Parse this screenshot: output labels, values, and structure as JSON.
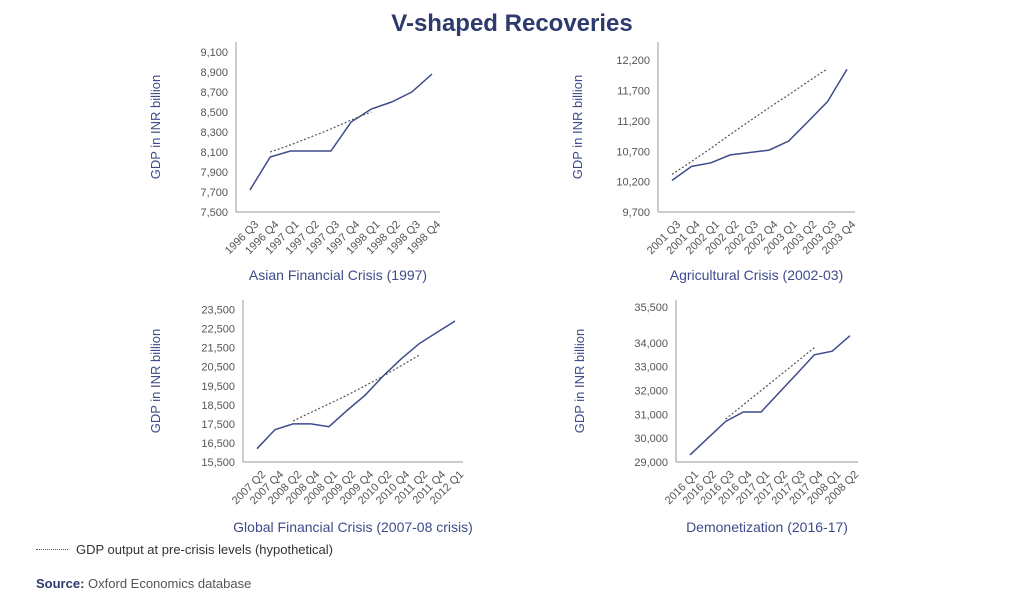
{
  "title": "V-shaped Recoveries",
  "legend": {
    "label": "GDP output at pre-crisis levels (hypothetical)"
  },
  "source": {
    "label": "Source:",
    "text": "Oxford Economics database"
  },
  "colors": {
    "line": "#3f4b8a",
    "title": "#2d3a6e",
    "dotted": "#555555",
    "axis": "#999999",
    "text": "#555555"
  },
  "chart_data": [
    {
      "type": "line",
      "title": "Asian Financial Crisis (1997)",
      "ylabel": "GDP in INR billion",
      "categories": [
        "1996 Q3",
        "1996 Q4",
        "1997 Q1",
        "1997 Q2",
        "1997 Q3",
        "1997 Q4",
        "1998 Q1",
        "1998 Q2",
        "1998 Q3",
        "1998 Q4"
      ],
      "series": [
        {
          "values": [
            7720,
            8050,
            8110,
            8110,
            8110,
            8400,
            8530,
            8600,
            8700,
            8880
          ]
        },
        {
          "style": "dotted",
          "values": [
            null,
            8100,
            8170,
            8250,
            8330,
            8420,
            8500,
            null,
            null,
            null
          ]
        }
      ],
      "yticks": [
        7500,
        7700,
        7900,
        8100,
        8300,
        8500,
        8700,
        8900,
        9100
      ],
      "ylim": [
        7500,
        9200
      ]
    },
    {
      "type": "line",
      "title": "Agricultural Crisis (2002-03)",
      "ylabel": "GDP in INR billion",
      "categories": [
        "2001 Q3",
        "2001 Q4",
        "2002 Q1",
        "2002 Q2",
        "2002 Q3",
        "2002 Q4",
        "2003 Q1",
        "2003 Q2",
        "2003 Q3",
        "2003 Q4"
      ],
      "series": [
        {
          "values": [
            10220,
            10450,
            10510,
            10640,
            10680,
            10720,
            10870,
            11190,
            11520,
            12050
          ]
        },
        {
          "style": "dotted",
          "values": [
            10320,
            10530,
            10750,
            10980,
            11200,
            11420,
            11630,
            11850,
            12060,
            null
          ]
        }
      ],
      "yticks": [
        9700,
        10200,
        10700,
        11200,
        11700,
        12200
      ],
      "ylim": [
        9700,
        12500
      ]
    },
    {
      "type": "line",
      "title": "Global Financial Crisis (2007-08 crisis)",
      "ylabel": "GDP in INR billion",
      "categories": [
        "2007 Q2",
        "2007 Q4",
        "2008 Q2",
        "2008 Q4",
        "2008 Q1",
        "2009 Q2",
        "2009 Q4",
        "2010 Q2",
        "2010 Q4",
        "2011 Q2",
        "2011 Q4",
        "2012 Q1"
      ],
      "series": [
        {
          "values": [
            16200,
            17200,
            17500,
            17500,
            17350,
            18200,
            19000,
            20000,
            20900,
            21700,
            22300,
            22900
          ]
        },
        {
          "style": "dotted",
          "values": [
            null,
            null,
            17650,
            18100,
            18550,
            19000,
            19500,
            20000,
            20550,
            21100,
            null,
            null
          ]
        }
      ],
      "yticks": [
        15500,
        16500,
        17500,
        18500,
        19500,
        20500,
        21500,
        22500,
        23500
      ],
      "ylim": [
        15500,
        24000
      ]
    },
    {
      "type": "line",
      "title": "Demonetization (2016-17)",
      "ylabel": "GDP in INR billion",
      "categories": [
        "2016 Q1",
        "2016 Q2",
        "2016 Q3",
        "2016 Q4",
        "2017 Q1",
        "2017 Q2",
        "2017 Q3",
        "2017 Q4",
        "2008 Q1",
        "2008 Q2"
      ],
      "series": [
        {
          "values": [
            29300,
            30000,
            30700,
            31100,
            31100,
            31900,
            32700,
            33500,
            33650,
            34300
          ]
        },
        {
          "style": "dotted",
          "values": [
            null,
            null,
            30800,
            31400,
            32000,
            32600,
            33200,
            33800,
            null,
            null
          ]
        }
      ],
      "yticks": [
        29000,
        30000,
        31000,
        32000,
        33000,
        34000,
        35500
      ],
      "ylim": [
        29000,
        35800
      ]
    }
  ]
}
